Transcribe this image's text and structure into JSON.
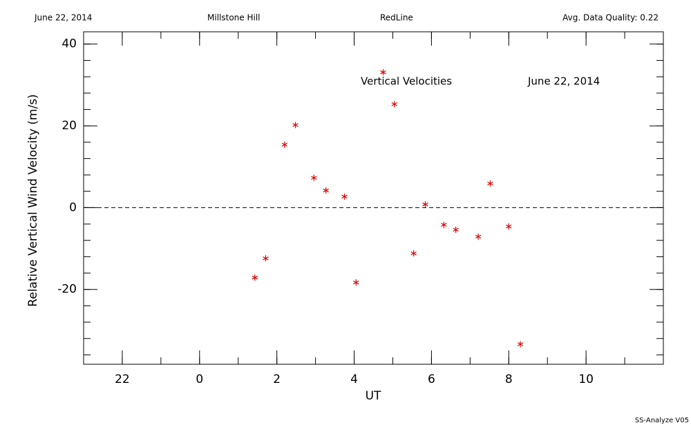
{
  "header": {
    "date": "June 22, 2014",
    "site": "Millstone Hill",
    "instrument": "RedLine",
    "quality": "Avg. Data Quality: 0.22"
  },
  "footer": "SS-Analyze V05",
  "chart_data": {
    "type": "scatter",
    "annotations": [
      "Vertical Velocities",
      "June 22, 2014"
    ],
    "xlabel": "UT",
    "ylabel": "Relative Vertical Wind Velocity (m/s)",
    "x": [
      1.43,
      1.71,
      2.2,
      2.48,
      2.96,
      3.27,
      3.75,
      4.05,
      4.75,
      5.04,
      5.54,
      5.84,
      6.32,
      6.63,
      7.21,
      7.52,
      8.0,
      8.3
    ],
    "series": [
      {
        "name": "Vertical Velocities",
        "color": "#e00000",
        "values": [
          -17.1,
          -12.4,
          15.4,
          20.2,
          7.3,
          4.2,
          2.7,
          -18.3,
          33.1,
          25.3,
          -11.2,
          0.8,
          -4.2,
          -5.4,
          -7.1,
          5.9,
          -4.6,
          -33.4
        ]
      }
    ],
    "xlim": [
      -3,
      12
    ],
    "ylim": [
      -38.3,
      43
    ],
    "xticks": [
      {
        "value": -2,
        "label": "22"
      },
      0,
      2,
      4,
      6,
      8,
      10
    ],
    "yticks": [
      -20,
      0,
      20,
      40
    ],
    "hline": 0
  }
}
